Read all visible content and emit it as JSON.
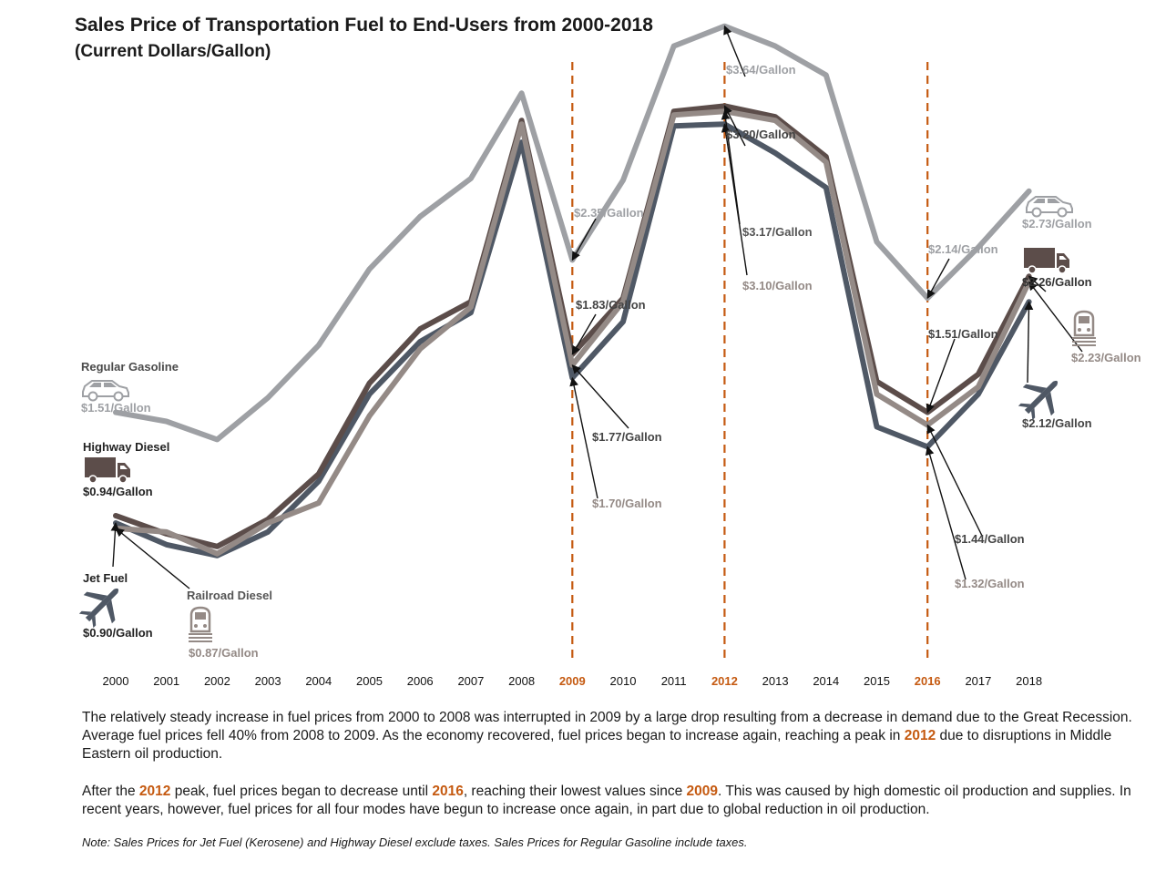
{
  "title": "Sales Price of Transportation Fuel to End-Users from 2000-2018",
  "subtitle": "(Current Dollars/Gallon)",
  "colors": {
    "gasoline": "#9ea0a4",
    "highway_diesel": "#5c4d4a",
    "jet_fuel": "#4f5865",
    "railroad_diesel": "#948a86",
    "highlight": "#c55a11"
  },
  "icons": {
    "gasoline": "car-icon",
    "highway_diesel": "truck-icon",
    "jet_fuel": "airplane-icon",
    "railroad_diesel": "train-icon"
  },
  "chart_data": {
    "type": "line",
    "title": "Sales Price of Transportation Fuel to End-Users from 2000-2018",
    "subtitle": "(Current Dollars/Gallon)",
    "x": [
      "2000",
      "2001",
      "2002",
      "2003",
      "2004",
      "2005",
      "2006",
      "2007",
      "2008",
      "2009",
      "2010",
      "2011",
      "2012",
      "2013",
      "2014",
      "2015",
      "2016",
      "2017",
      "2018"
    ],
    "highlighted_years": [
      "2009",
      "2012",
      "2016"
    ],
    "ylim": [
      0.5,
      3.8
    ],
    "grid": false,
    "series": [
      {
        "key": "gasoline",
        "name": "Regular Gasoline",
        "values": [
          1.51,
          1.46,
          1.36,
          1.59,
          1.88,
          2.3,
          2.59,
          2.8,
          3.27,
          2.35,
          2.79,
          3.53,
          3.64,
          3.53,
          3.37,
          2.45,
          2.14,
          2.42,
          2.73
        ]
      },
      {
        "key": "highway_diesel",
        "name": "Highway Diesel",
        "values": [
          0.94,
          0.84,
          0.77,
          0.92,
          1.17,
          1.67,
          1.97,
          2.12,
          3.12,
          1.83,
          2.14,
          3.17,
          3.2,
          3.14,
          2.92,
          1.68,
          1.51,
          1.72,
          2.26
        ]
      },
      {
        "key": "jet_fuel",
        "name": "Jet Fuel",
        "values": [
          0.9,
          0.78,
          0.72,
          0.85,
          1.13,
          1.61,
          1.9,
          2.06,
          3.0,
          1.7,
          2.01,
          3.09,
          3.1,
          2.94,
          2.75,
          1.43,
          1.32,
          1.61,
          2.12
        ]
      },
      {
        "key": "railroad_diesel",
        "name": "Railroad Diesel",
        "values": [
          0.87,
          0.85,
          0.73,
          0.9,
          1.01,
          1.49,
          1.86,
          2.09,
          3.1,
          1.77,
          2.12,
          3.15,
          3.17,
          3.12,
          2.89,
          1.61,
          1.44,
          1.65,
          2.23
        ]
      }
    ],
    "annotations": [
      {
        "text": "Regular Gasoline"
      },
      {
        "text": "$1.51/Gallon"
      },
      {
        "text": "Highway Diesel"
      },
      {
        "text": "$0.94/Gallon"
      },
      {
        "text": "Jet Fuel"
      },
      {
        "text": "$0.90/Gallon"
      },
      {
        "text": "Railroad Diesel"
      },
      {
        "text": "$0.87/Gallon"
      },
      {
        "text": "$2.35/Gallon"
      },
      {
        "text": "$1.83/Gallon"
      },
      {
        "text": "$1.77/Gallon"
      },
      {
        "text": "$1.70/Gallon"
      },
      {
        "text": "$3.64/Gallon"
      },
      {
        "text": "$3.20/Gallon"
      },
      {
        "text": "$3.17/Gallon"
      },
      {
        "text": "$3.10/Gallon"
      },
      {
        "text": "$2.14/Gallon"
      },
      {
        "text": "$1.51/Gallon"
      },
      {
        "text": "$1.44/Gallon"
      },
      {
        "text": "$1.32/Gallon"
      },
      {
        "text": "$2.73/Gallon"
      },
      {
        "text": "$2.26/Gallon"
      },
      {
        "text": "$2.23/Gallon"
      },
      {
        "text": "$2.12/Gallon"
      }
    ]
  },
  "text": {
    "p1_a": "The relatively steady increase in fuel prices from 2000 to 2008 was interrupted in 2009 by a large drop resulting from a decrease in demand due to the Great Recession. Average fuel prices fell 40% from 2008 to 2009. As the economy recovered, fuel prices began to increase again, reaching a peak in ",
    "p1_y": "2012",
    "p1_b": " due to disruptions in Middle Eastern oil production.",
    "p2_a": "After the ",
    "p2_y1": "2012",
    "p2_b": " peak, fuel prices began to decrease until ",
    "p2_y2": "2016",
    "p2_c": ", reaching their lowest values since ",
    "p2_y3": "2009",
    "p2_d": ". This was caused by high domestic oil production and supplies. In recent years, however, fuel prices for all four modes have begun to increase once again, in part due to global reduction in oil production.",
    "note": "Note: Sales Prices for Jet Fuel (Kerosene) and Highway Diesel exclude taxes. Sales Prices for Regular Gasoline include taxes."
  }
}
